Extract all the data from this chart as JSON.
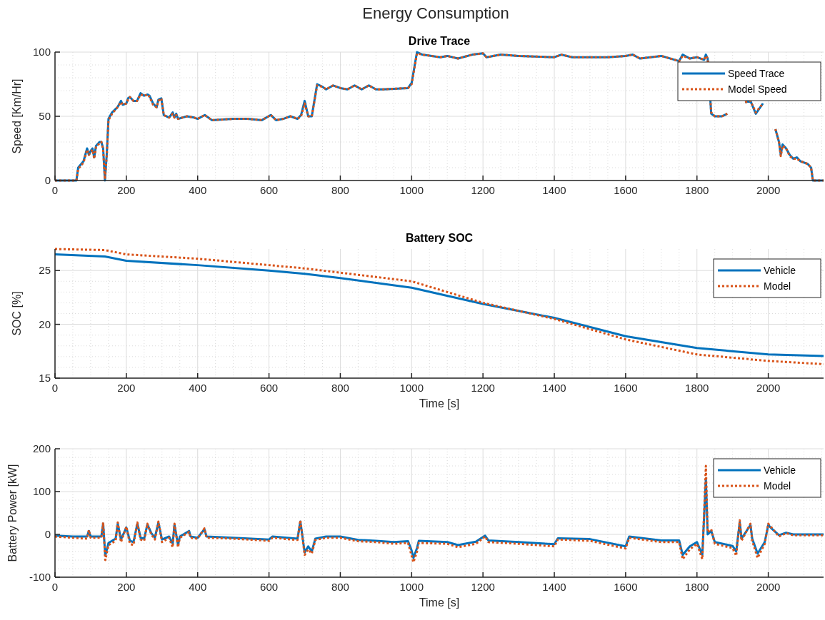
{
  "chart_data": [
    {
      "type": "line",
      "title": "Energy Consumption",
      "subtitle": "Drive Trace",
      "ylabel": "Speed [Km/Hr]",
      "xlim": [
        0,
        2155
      ],
      "xticks": [
        0,
        200,
        400,
        600,
        800,
        1000,
        1200,
        1400,
        1600,
        1800,
        2000
      ],
      "ylim": [
        0,
        100
      ],
      "yticks": [
        0,
        50,
        100
      ],
      "grid": true,
      "legend": "top right",
      "x": [
        0,
        60,
        65,
        80,
        90,
        95,
        100,
        105,
        110,
        115,
        125,
        130,
        135,
        140,
        145,
        150,
        160,
        175,
        185,
        190,
        200,
        205,
        210,
        220,
        230,
        240,
        250,
        260,
        265,
        275,
        285,
        290,
        298,
        305,
        320,
        330,
        335,
        340,
        345,
        370,
        390,
        400,
        420,
        440,
        500,
        540,
        580,
        605,
        620,
        640,
        660,
        680,
        690,
        700,
        710,
        720,
        735,
        750,
        760,
        780,
        800,
        820,
        840,
        860,
        880,
        900,
        920,
        990,
        1000,
        1015,
        1030,
        1080,
        1100,
        1130,
        1170,
        1200,
        1210,
        1250,
        1300,
        1400,
        1420,
        1450,
        1500,
        1550,
        1600,
        1620,
        1640,
        1700,
        1750,
        1760,
        1780,
        1800,
        1820,
        1825,
        1830,
        1840,
        1850,
        1870,
        1885,
        1900,
        1920,
        1935,
        1950,
        1965,
        1985,
        2000,
        2005,
        2020,
        2030,
        2035,
        2040,
        2050,
        2060,
        2070,
        2080,
        2090,
        2110,
        2120,
        2125,
        2155
      ],
      "series": [
        {
          "name": "Speed Trace",
          "color": "#0072bd",
          "line_style": "solid",
          "values": [
            0,
            0,
            10,
            15,
            25,
            20,
            23,
            25,
            18,
            27,
            30,
            30,
            25,
            0,
            20,
            48,
            53,
            57,
            62,
            59,
            60,
            64,
            65,
            62,
            62,
            68,
            66,
            67,
            66,
            60,
            57,
            63,
            64,
            51,
            49,
            53,
            49,
            52,
            48,
            50,
            49,
            48,
            51,
            47,
            48,
            48,
            47,
            51,
            47,
            48,
            50,
            48,
            51,
            62,
            50,
            50,
            75,
            73,
            71,
            74,
            72,
            71,
            74,
            71,
            74,
            71,
            71,
            72,
            76,
            100,
            98,
            96,
            97,
            95,
            98,
            99,
            96,
            98,
            97,
            96,
            98,
            96,
            96,
            96,
            97,
            98,
            95,
            97,
            93,
            98,
            95,
            96,
            94,
            98,
            95,
            52,
            50,
            50,
            52,
            null,
            null,
            61,
            62,
            52,
            60,
            null,
            null,
            40,
            30,
            20,
            28,
            25,
            20,
            17,
            18,
            15,
            13,
            10,
            0,
            0
          ]
        },
        {
          "name": "Model Speed",
          "color": "#d95319",
          "line_style": "dotted",
          "values": [
            0,
            0,
            9,
            14,
            24,
            20,
            22,
            24,
            17,
            26,
            29,
            30,
            24,
            1,
            19,
            47,
            52,
            57,
            61,
            59,
            60,
            63,
            65,
            62,
            62,
            67,
            66,
            67,
            65,
            59,
            57,
            62,
            64,
            51,
            49,
            52,
            49,
            51,
            48,
            50,
            49,
            48,
            51,
            47,
            48,
            48,
            47,
            51,
            47,
            48,
            50,
            48,
            50,
            60,
            50,
            50,
            74,
            73,
            71,
            74,
            72,
            71,
            74,
            71,
            74,
            71,
            71,
            72,
            75,
            99,
            98,
            96,
            97,
            95,
            98,
            99,
            96,
            98,
            97,
            96,
            98,
            96,
            96,
            96,
            97,
            98,
            95,
            97,
            93,
            97,
            95,
            96,
            94,
            97,
            95,
            53,
            50,
            50,
            52,
            null,
            null,
            61,
            62,
            53,
            60,
            null,
            null,
            40,
            30,
            19,
            27,
            25,
            19,
            17,
            17,
            15,
            13,
            10,
            0,
            0
          ]
        }
      ]
    },
    {
      "type": "line",
      "title": "Battery SOC",
      "xlabel": "Time [s]",
      "ylabel": "SOC [%]",
      "xlim": [
        0,
        2155
      ],
      "xticks": [
        0,
        200,
        400,
        600,
        800,
        1000,
        1200,
        1400,
        1600,
        1800,
        2000
      ],
      "ylim": [
        15,
        27
      ],
      "yticks": [
        15,
        20,
        25
      ],
      "grid": true,
      "legend": "top right",
      "x": [
        0,
        140,
        200,
        400,
        600,
        700,
        800,
        1000,
        1200,
        1400,
        1600,
        1800,
        2000,
        2155
      ],
      "series": [
        {
          "name": "Vehicle",
          "color": "#0072bd",
          "line_style": "solid",
          "values": [
            26.5,
            26.3,
            25.9,
            25.5,
            25.0,
            24.7,
            24.3,
            23.4,
            21.9,
            20.6,
            18.9,
            17.8,
            17.2,
            17.05
          ]
        },
        {
          "name": "Model",
          "color": "#d95319",
          "line_style": "dotted",
          "values": [
            27.0,
            26.9,
            26.5,
            26.1,
            25.5,
            25.2,
            24.8,
            24.0,
            22.0,
            20.5,
            18.6,
            17.2,
            16.6,
            16.3
          ]
        }
      ]
    },
    {
      "type": "line",
      "xlabel": "Time [s]",
      "ylabel": "Battery Power [kW]",
      "xlim": [
        0,
        2155
      ],
      "xticks": [
        0,
        200,
        400,
        600,
        800,
        1000,
        1200,
        1400,
        1600,
        1800,
        2000
      ],
      "ylim": [
        -100,
        200
      ],
      "yticks": [
        -100,
        0,
        100,
        200
      ],
      "grid": true,
      "legend": "top right",
      "x": [
        0,
        50,
        90,
        95,
        100,
        130,
        135,
        141,
        150,
        170,
        176,
        185,
        200,
        210,
        220,
        231,
        240,
        250,
        259,
        270,
        280,
        290,
        300,
        320,
        330,
        335,
        345,
        350,
        376,
        380,
        400,
        419,
        425,
        500,
        600,
        610,
        680,
        688,
        700,
        710,
        720,
        730,
        760,
        800,
        850,
        900,
        950,
        990,
        1000,
        1005,
        1015,
        1020,
        1100,
        1130,
        1180,
        1206,
        1215,
        1300,
        1400,
        1410,
        1500,
        1600,
        1610,
        1700,
        1750,
        1760,
        1780,
        1800,
        1815,
        1825,
        1830,
        1840,
        1850,
        1900,
        1910,
        1920,
        1925,
        1950,
        1955,
        1970,
        1990,
        2000,
        2010,
        2030,
        2050,
        2070,
        2155
      ],
      "series": [
        {
          "name": "Vehicle",
          "color": "#0072bd",
          "line_style": "solid",
          "values": [
            -3,
            -5,
            -5,
            8,
            -5,
            -5,
            25,
            -50,
            -20,
            -10,
            25,
            -12,
            16,
            -15,
            -18,
            25,
            -8,
            -10,
            23,
            3,
            -8,
            28,
            -12,
            -5,
            -22,
            23,
            -25,
            -5,
            8,
            -5,
            -8,
            12,
            -5,
            -8,
            -12,
            -5,
            -10,
            30,
            -42,
            -28,
            -40,
            -10,
            -5,
            -5,
            -13,
            -15,
            -18,
            -16,
            -38,
            -55,
            -32,
            -15,
            -18,
            -25,
            -17,
            -3,
            -14,
            -18,
            -23,
            -9,
            -11,
            -28,
            -5,
            -14,
            -14,
            -48,
            -28,
            -18,
            -48,
            130,
            0,
            8,
            -18,
            -27,
            -40,
            28,
            -10,
            22,
            -10,
            -45,
            -18,
            22,
            13,
            -2,
            4,
            0,
            0
          ]
        },
        {
          "name": "Model",
          "color": "#d95319",
          "line_style": "dotted",
          "values": [
            -5,
            -8,
            -10,
            10,
            -8,
            -8,
            28,
            -60,
            -25,
            -15,
            28,
            -18,
            18,
            -22,
            -25,
            28,
            -12,
            -15,
            25,
            0,
            -12,
            30,
            -18,
            -8,
            -30,
            25,
            -30,
            -8,
            6,
            -8,
            -10,
            14,
            -8,
            -10,
            -15,
            -8,
            -13,
            33,
            -48,
            -35,
            -45,
            -13,
            -8,
            -8,
            -16,
            -18,
            -22,
            -20,
            -50,
            -65,
            -40,
            -20,
            -22,
            -30,
            -22,
            -5,
            -18,
            -22,
            -28,
            -12,
            -15,
            -33,
            -8,
            -18,
            -18,
            -58,
            -35,
            -22,
            -58,
            160,
            5,
            12,
            -22,
            -32,
            -50,
            33,
            -15,
            25,
            -15,
            -55,
            -22,
            25,
            15,
            -5,
            3,
            -2,
            -2
          ]
        }
      ]
    }
  ]
}
